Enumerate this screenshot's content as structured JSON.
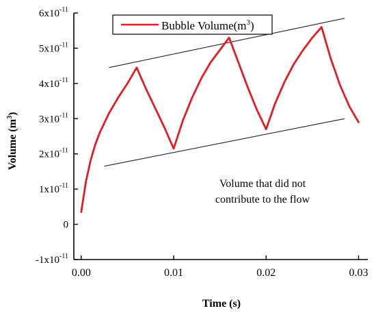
{
  "chart_data": {
    "type": "line",
    "xlabel": "Time (s)",
    "ylabel_base": "Volume (m",
    "ylabel_sup": "3",
    "ylabel_close": ")",
    "xlim": [
      -0.0008,
      0.031
    ],
    "ylim": [
      -1e-11,
      6e-11
    ],
    "x_ticks": [
      0.0,
      0.01,
      0.02,
      0.03
    ],
    "x_tick_labels": [
      "0.00",
      "0.01",
      "0.02",
      "0.03"
    ],
    "y_ticks": [
      {
        "value": -1e-11,
        "prefix": "-1x10",
        "exp": "-11"
      },
      {
        "value": 0,
        "prefix": "0",
        "exp": ""
      },
      {
        "value": 1e-11,
        "prefix": "1x10",
        "exp": "-11"
      },
      {
        "value": 2e-11,
        "prefix": "2x10",
        "exp": "-11"
      },
      {
        "value": 3e-11,
        "prefix": "3x10",
        "exp": "-11"
      },
      {
        "value": 4e-11,
        "prefix": "4x10",
        "exp": "-11"
      },
      {
        "value": 5e-11,
        "prefix": "5x10",
        "exp": "-11"
      },
      {
        "value": 6e-11,
        "prefix": "6x10",
        "exp": "-11"
      }
    ],
    "grid": false,
    "legend": {
      "placement": "top",
      "label_base": "Bubble Volume(m",
      "label_sup": "3",
      "label_close": ")"
    },
    "series": [
      {
        "name": "Bubble Volume(m3)",
        "color": "#e31b23",
        "x": [
          0.0,
          0.0005,
          0.001,
          0.0015,
          0.002,
          0.003,
          0.004,
          0.005,
          0.006,
          0.007,
          0.008,
          0.009,
          0.01,
          0.011,
          0.012,
          0.013,
          0.014,
          0.015,
          0.016,
          0.017,
          0.018,
          0.019,
          0.02,
          0.021,
          0.022,
          0.023,
          0.024,
          0.025,
          0.026,
          0.027,
          0.028,
          0.029,
          0.03
        ],
        "y": [
          3.5e-12,
          1.2e-11,
          1.8e-11,
          2.25e-11,
          2.6e-11,
          3.15e-11,
          3.6e-11,
          4e-11,
          4.45e-11,
          3.85e-11,
          3.3e-11,
          2.75e-11,
          2.15e-11,
          2.95e-11,
          3.6e-11,
          4.15e-11,
          4.6e-11,
          4.95e-11,
          5.3e-11,
          4.6e-11,
          3.9e-11,
          3.25e-11,
          2.7e-11,
          3.45e-11,
          4.05e-11,
          4.55e-11,
          4.95e-11,
          5.3e-11,
          5.6e-11,
          4.7e-11,
          3.95e-11,
          3.35e-11,
          2.9e-11
        ]
      }
    ],
    "envelope_lines": [
      {
        "x": [
          0.003,
          0.0285
        ],
        "y": [
          4.45e-11,
          5.85e-11
        ],
        "color": "#222222"
      },
      {
        "x": [
          0.0025,
          0.0285
        ],
        "y": [
          1.65e-11,
          3e-11
        ],
        "color": "#222222"
      }
    ],
    "annotation": {
      "line1": "Volume that did not",
      "line2": "contribute to the flow"
    }
  }
}
